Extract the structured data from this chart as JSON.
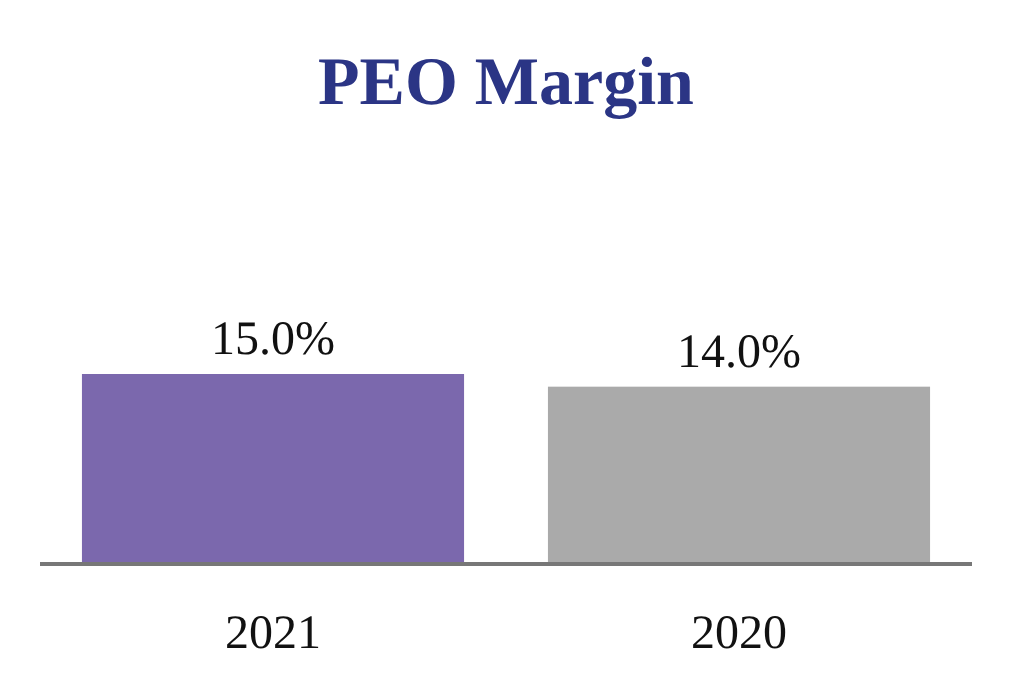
{
  "chart_data": {
    "type": "bar",
    "title": "PEO Margin",
    "categories": [
      "2021",
      "2020"
    ],
    "values": [
      15,
      14
    ],
    "colors": [
      "#7b68ad",
      "#aaaaaa"
    ],
    "value_labels": [
      "15.0%",
      "14.0%"
    ]
  }
}
